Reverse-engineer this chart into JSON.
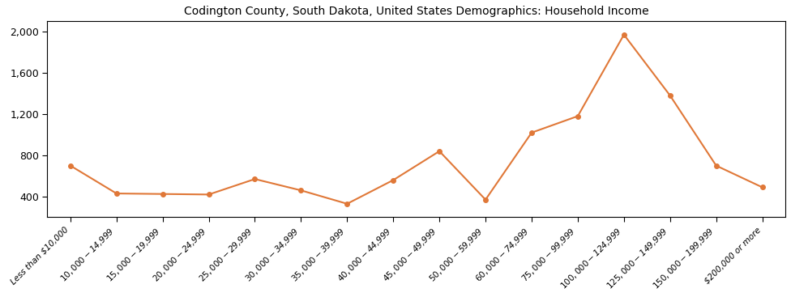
{
  "title": "Codington County, South Dakota, United States Demographics: Household Income",
  "categories": [
    "Less than $10,000",
    "$10,000 - $14,999",
    "$15,000 - $19,999",
    "$20,000 - $24,999",
    "$25,000 - $29,999",
    "$30,000 - $34,999",
    "$35,000 - $39,999",
    "$40,000 - $44,999",
    "$45,000 - $49,999",
    "$50,000 - $59,999",
    "$60,000 - $74,999",
    "$75,000 - $99,999",
    "$100,000 - $124,999",
    "$125,000 - $149,999",
    "$150,000 - $199,999",
    "$200,000 or more"
  ],
  "values": [
    700,
    430,
    425,
    420,
    570,
    460,
    330,
    560,
    840,
    370,
    1020,
    1180,
    1970,
    1380,
    700,
    490
  ],
  "line_color": "#e07838",
  "marker_color": "#e07838",
  "ylim": [
    200,
    2100
  ],
  "yticks": [
    400,
    800,
    1200,
    1600,
    2000
  ],
  "background_color": "#ffffff",
  "title_fontsize": 10,
  "figsize": [
    9.76,
    3.67
  ],
  "dpi": 100
}
